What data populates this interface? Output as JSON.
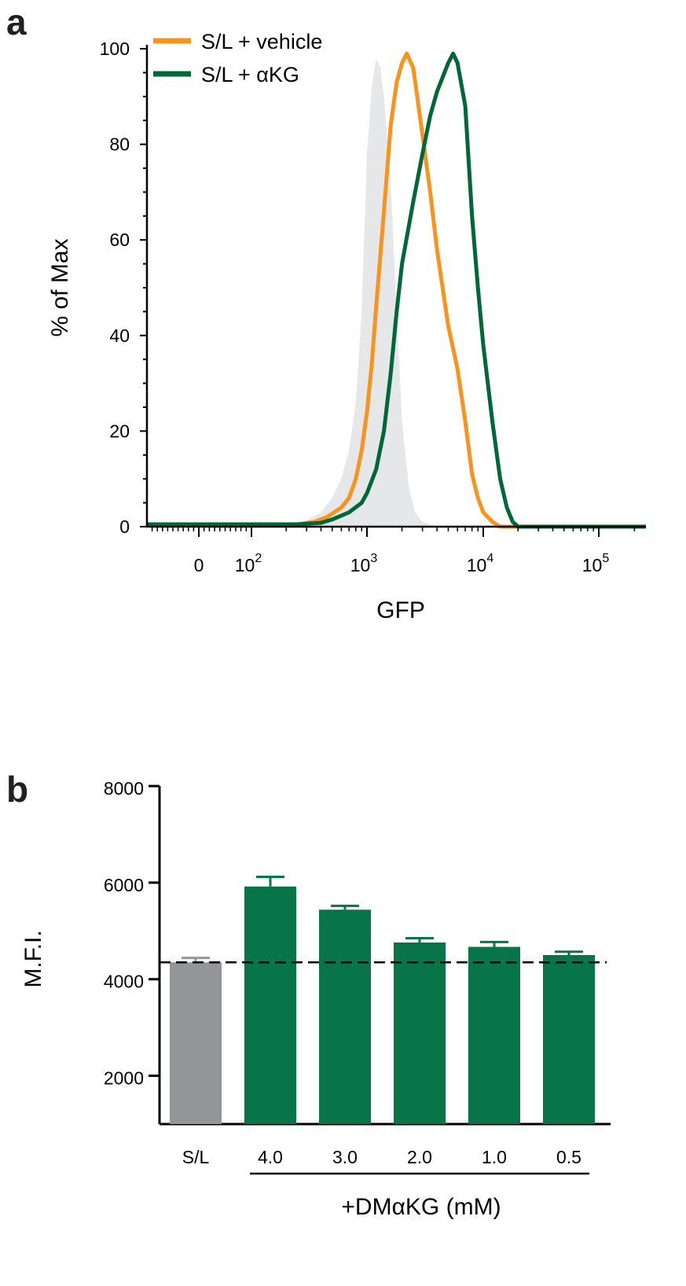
{
  "panel_a": {
    "letter": "a"
  },
  "panel_b": {
    "letter": "b"
  },
  "chart_data": [
    {
      "type": "line",
      "panel": "a",
      "xlabel": "GFP",
      "ylabel": "% of Max",
      "x_scale": "logicle (biexponential)",
      "xticks": [
        {
          "value": 0,
          "label": "0"
        },
        {
          "value": 100,
          "base": "10",
          "exp": "2"
        },
        {
          "value": 1000,
          "base": "10",
          "exp": "3"
        },
        {
          "value": 10000,
          "base": "10",
          "exp": "4"
        },
        {
          "value": 100000,
          "base": "10",
          "exp": "5"
        }
      ],
      "yticks": [
        0,
        20,
        40,
        60,
        80,
        100
      ],
      "ylim": [
        0,
        100
      ],
      "legend": "top-left",
      "series": [
        {
          "name": "",
          "style": "filled",
          "color": "#e6e7e8",
          "points": [
            [
              -100,
              0
            ],
            [
              0,
              0
            ],
            [
              150,
              0
            ],
            [
              250,
              0.3
            ],
            [
              400,
              3
            ],
            [
              500,
              6
            ],
            [
              600,
              10
            ],
            [
              700,
              16
            ],
            [
              800,
              26
            ],
            [
              900,
              45
            ],
            [
              1000,
              78
            ],
            [
              1100,
              92
            ],
            [
              1200,
              98
            ],
            [
              1300,
              96
            ],
            [
              1400,
              90
            ],
            [
              1600,
              72
            ],
            [
              1800,
              45
            ],
            [
              2000,
              22
            ],
            [
              2300,
              8
            ],
            [
              2600,
              3
            ],
            [
              3000,
              1
            ],
            [
              4000,
              0
            ],
            [
              250000,
              0
            ]
          ]
        },
        {
          "name": "S/L + vehicle",
          "color": "#f7941d",
          "points": [
            [
              -100,
              0.5
            ],
            [
              0,
              0.5
            ],
            [
              150,
              0.5
            ],
            [
              250,
              0.5
            ],
            [
              350,
              1
            ],
            [
              450,
              2
            ],
            [
              600,
              4
            ],
            [
              700,
              6
            ],
            [
              800,
              10
            ],
            [
              900,
              16
            ],
            [
              1000,
              24
            ],
            [
              1100,
              34
            ],
            [
              1200,
              46
            ],
            [
              1400,
              66
            ],
            [
              1600,
              84
            ],
            [
              1800,
              93
            ],
            [
              2000,
              97
            ],
            [
              2200,
              99
            ],
            [
              2500,
              96
            ],
            [
              3000,
              82
            ],
            [
              3500,
              70
            ],
            [
              4000,
              58
            ],
            [
              5000,
              42
            ],
            [
              6000,
              33
            ],
            [
              7000,
              22
            ],
            [
              8000,
              11
            ],
            [
              9000,
              6
            ],
            [
              10000,
              3
            ],
            [
              12000,
              1
            ],
            [
              14000,
              0
            ],
            [
              250000,
              0
            ]
          ]
        },
        {
          "name": "S/L + αKG",
          "color": "#006838",
          "points": [
            [
              -100,
              0.5
            ],
            [
              0,
              0.5
            ],
            [
              150,
              0.5
            ],
            [
              250,
              0.5
            ],
            [
              400,
              0.8
            ],
            [
              500,
              1.5
            ],
            [
              700,
              3
            ],
            [
              900,
              5
            ],
            [
              1000,
              7
            ],
            [
              1200,
              12
            ],
            [
              1400,
              20
            ],
            [
              1600,
              32
            ],
            [
              1800,
              45
            ],
            [
              2000,
              55
            ],
            [
              2500,
              68
            ],
            [
              3000,
              78
            ],
            [
              3500,
              86
            ],
            [
              4000,
              91
            ],
            [
              5000,
              97
            ],
            [
              5500,
              99
            ],
            [
              6000,
              97
            ],
            [
              7000,
              88
            ],
            [
              8000,
              65
            ],
            [
              9000,
              50
            ],
            [
              10000,
              38
            ],
            [
              12000,
              22
            ],
            [
              14000,
              10
            ],
            [
              16000,
              4
            ],
            [
              18000,
              1
            ],
            [
              20000,
              0
            ],
            [
              250000,
              0
            ]
          ]
        }
      ]
    },
    {
      "type": "bar",
      "panel": "b",
      "ylabel": "M.F.I.",
      "ylim": [
        1000,
        8000
      ],
      "yticks": [
        2000,
        4000,
        6000,
        8000
      ],
      "categories": [
        "S/L",
        "4.0",
        "3.0",
        "2.0",
        "1.0",
        "0.5"
      ],
      "values": [
        4350,
        5920,
        5440,
        4760,
        4670,
        4500
      ],
      "errors": [
        90,
        200,
        80,
        90,
        100,
        70
      ],
      "colors": [
        "#939598",
        "#077547",
        "#077547",
        "#077547",
        "#077547",
        "#077547"
      ],
      "reference_line": 4350,
      "group_label": "+DMαKG (mM)"
    }
  ]
}
